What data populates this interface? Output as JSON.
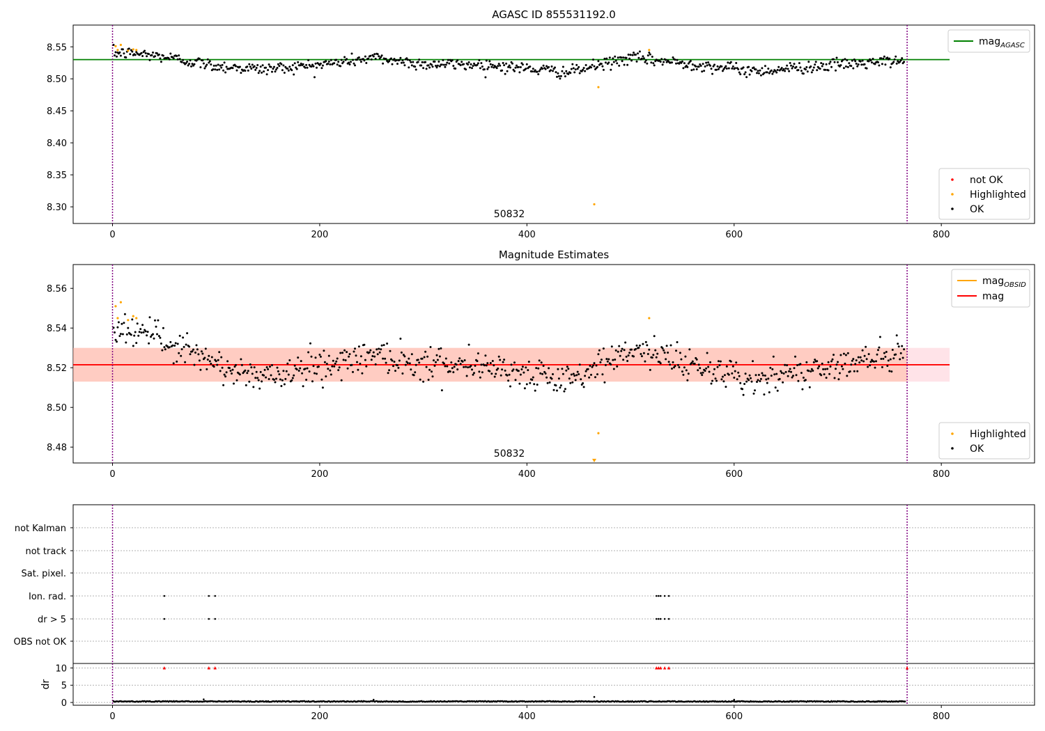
{
  "chart_data": [
    {
      "type": "scatter",
      "title": "AGASC ID 855531192.0",
      "x_range": [
        -38,
        890
      ],
      "y_range": [
        8.274,
        8.584
      ],
      "x_ticks": [
        0,
        200,
        400,
        600,
        800
      ],
      "x_tick_labels": [
        "0",
        "200",
        "400",
        "600",
        "800"
      ],
      "y_ticks": [
        8.3,
        8.35,
        8.4,
        8.45,
        8.5,
        8.55
      ],
      "y_tick_labels": [
        "8.30",
        "8.35",
        "8.40",
        "8.45",
        "8.50",
        "8.55"
      ],
      "obsid_label": "50832",
      "obsid_label_x": 383,
      "obs_boundaries": [
        0,
        767
      ],
      "reference_lines": [
        {
          "name": "mag",
          "subscript": "AGASC",
          "y": 8.53,
          "x_range": [
            -38,
            808
          ],
          "color": "#008000"
        }
      ],
      "series_ok": {
        "name": "OK",
        "color": "#000000",
        "n": 764,
        "x_start": 1,
        "x_end": 764,
        "trend_start": 8.538,
        "trend_end": 8.524,
        "noise": 0.0085,
        "anchors": [
          {
            "x": 2,
            "y": 8.54
          },
          {
            "x": 20,
            "y": 8.54
          },
          {
            "x": 48,
            "y": 8.535
          },
          {
            "x": 100,
            "y": 8.52
          },
          {
            "x": 145,
            "y": 8.515
          },
          {
            "x": 200,
            "y": 8.522
          },
          {
            "x": 252,
            "y": 8.533
          },
          {
            "x": 300,
            "y": 8.523
          },
          {
            "x": 360,
            "y": 8.522
          },
          {
            "x": 440,
            "y": 8.51
          },
          {
            "x": 500,
            "y": 8.533
          },
          {
            "x": 560,
            "y": 8.523
          },
          {
            "x": 620,
            "y": 8.512
          },
          {
            "x": 700,
            "y": 8.522
          },
          {
            "x": 765,
            "y": 8.528
          }
        ]
      },
      "series_highlighted": {
        "name": "Highlighted",
        "color": "#FFA500",
        "points": [
          {
            "x": 3,
            "y": 8.551
          },
          {
            "x": 5,
            "y": 8.545
          },
          {
            "x": 8,
            "y": 8.553
          },
          {
            "x": 15,
            "y": 8.544
          },
          {
            "x": 20,
            "y": 8.546
          },
          {
            "x": 23,
            "y": 8.545
          },
          {
            "x": 465,
            "y": 8.304
          },
          {
            "x": 469,
            "y": 8.487
          },
          {
            "x": 518,
            "y": 8.545
          }
        ]
      },
      "series_not_ok": {
        "name": "not OK",
        "color": "#FF0000",
        "points": []
      },
      "legend_lines": [
        {
          "label": "mag",
          "subscript": "AGASC",
          "color": "#008000"
        }
      ],
      "legend_markers": [
        {
          "label": "not OK",
          "color": "#FF0000"
        },
        {
          "label": "Highlighted",
          "color": "#FFA500"
        },
        {
          "label": "OK",
          "color": "#000000"
        }
      ]
    },
    {
      "type": "scatter",
      "title": "Magnitude Estimates",
      "x_range": [
        -38,
        890
      ],
      "y_range": [
        8.472,
        8.572
      ],
      "x_ticks": [
        0,
        200,
        400,
        600,
        800
      ],
      "x_tick_labels": [
        "0",
        "200",
        "400",
        "600",
        "800"
      ],
      "y_ticks": [
        8.48,
        8.5,
        8.52,
        8.54,
        8.56
      ],
      "y_tick_labels": [
        "8.48",
        "8.50",
        "8.52",
        "8.54",
        "8.56"
      ],
      "obsid_label": "50832",
      "obsid_label_x": 383,
      "obs_boundaries": [
        0,
        767
      ],
      "bands": [
        {
          "y_low": 8.513,
          "y_high": 8.53,
          "x_range": [
            -38,
            808
          ],
          "color": "#FFC0CB",
          "opacity": 0.45
        },
        {
          "y_low": 8.513,
          "y_high": 8.53,
          "x_range": [
            -38,
            767
          ],
          "color": "#FFA07A",
          "opacity": 0.35
        }
      ],
      "reference_lines": [
        {
          "name": "mag",
          "y": 8.5215,
          "x_range": [
            -38,
            808
          ],
          "color": "#FF0000"
        }
      ],
      "series_ok": {
        "name": "OK",
        "color": "#000000",
        "n": 764,
        "x_start": 1,
        "x_end": 764,
        "trend_start": 8.536,
        "trend_end": 8.522,
        "noise": 0.0075,
        "anchors": [
          {
            "x": 2,
            "y": 8.54
          },
          {
            "x": 20,
            "y": 8.539
          },
          {
            "x": 48,
            "y": 8.534
          },
          {
            "x": 100,
            "y": 8.521
          },
          {
            "x": 145,
            "y": 8.515
          },
          {
            "x": 200,
            "y": 8.521
          },
          {
            "x": 252,
            "y": 8.527
          },
          {
            "x": 300,
            "y": 8.522
          },
          {
            "x": 360,
            "y": 8.522
          },
          {
            "x": 440,
            "y": 8.512
          },
          {
            "x": 500,
            "y": 8.53
          },
          {
            "x": 560,
            "y": 8.522
          },
          {
            "x": 620,
            "y": 8.513
          },
          {
            "x": 700,
            "y": 8.522
          },
          {
            "x": 765,
            "y": 8.527
          }
        ]
      },
      "series_highlighted": {
        "name": "Highlighted",
        "color": "#FFA500",
        "points": [
          {
            "x": 3,
            "y": 8.551
          },
          {
            "x": 5,
            "y": 8.545
          },
          {
            "x": 8,
            "y": 8.553
          },
          {
            "x": 15,
            "y": 8.544
          },
          {
            "x": 20,
            "y": 8.546
          },
          {
            "x": 23,
            "y": 8.545
          },
          {
            "x": 469,
            "y": 8.487
          },
          {
            "x": 518,
            "y": 8.545
          }
        ]
      },
      "offscale_markers": [
        {
          "x": 465,
          "color": "#FFA500"
        }
      ],
      "legend_lines": [
        {
          "label": "mag",
          "subscript": "OBSID",
          "color": "#FFA500"
        },
        {
          "label": "mag",
          "subscript": "",
          "color": "#FF0000"
        }
      ],
      "legend_markers": [
        {
          "label": "Highlighted",
          "color": "#FFA500"
        },
        {
          "label": "OK",
          "color": "#000000"
        }
      ]
    },
    {
      "type": "scatter",
      "title": "",
      "x_range": [
        -38,
        890
      ],
      "x_ticks": [
        0,
        200,
        400,
        600,
        800
      ],
      "x_tick_labels": [
        "0",
        "200",
        "400",
        "600",
        "800"
      ],
      "obs_boundaries": [
        0,
        767
      ],
      "flag_rows": [
        "not Kalman",
        "not track",
        "Sat. pixel.",
        "Ion. rad.",
        "dr > 5",
        "OBS not OK"
      ],
      "flag_points": [
        {
          "row": "Ion. rad.",
          "x": [
            50,
            93,
            99,
            525,
            527,
            529,
            533,
            537
          ]
        },
        {
          "row": "dr > 5",
          "x": [
            50,
            93,
            99,
            525,
            527,
            529,
            533,
            537
          ]
        }
      ],
      "dr_panel": {
        "ylabel": "dr",
        "y_range": [
          -0.8,
          11.3
        ],
        "y_ticks": [
          0,
          5,
          10
        ],
        "y_tick_labels": [
          "0",
          "5",
          "10"
        ],
        "baseline_start": 0.3,
        "baseline_end": 0.3,
        "n": 764,
        "spikes": [
          {
            "x": 88,
            "y": 0.9
          },
          {
            "x": 252,
            "y": 0.8
          },
          {
            "x": 465,
            "y": 1.6
          },
          {
            "x": 600,
            "y": 0.8
          }
        ],
        "clipped_markers_y": 10,
        "clipped_markers_x": [
          50,
          93,
          99,
          525,
          527,
          529,
          533,
          537,
          767
        ],
        "clipped_color": "#FF0000"
      }
    }
  ]
}
